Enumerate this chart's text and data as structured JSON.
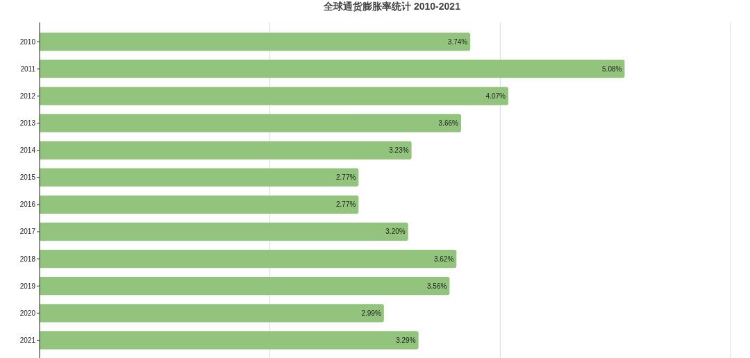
{
  "chart_data": {
    "type": "bar",
    "orientation": "horizontal",
    "title": "全球通货膨胀率统计 2010-2021",
    "categories": [
      "2010",
      "2011",
      "2012",
      "2013",
      "2014",
      "2015",
      "2016",
      "2017",
      "2018",
      "2019",
      "2020",
      "2021"
    ],
    "values": [
      3.74,
      5.08,
      4.07,
      3.66,
      3.23,
      2.77,
      2.77,
      3.2,
      3.62,
      3.56,
      2.99,
      3.29
    ],
    "value_labels": [
      "3.74%",
      "5.08%",
      "4.07%",
      "3.66%",
      "3.23%",
      "2.77%",
      "2.77%",
      "3.20%",
      "3.62%",
      "3.56%",
      "2.99%",
      "3.29%"
    ],
    "color": "#93c47d",
    "xlim": [
      0,
      6
    ],
    "xticks": [
      {
        "value": 0,
        "label": null
      },
      {
        "value": 2,
        "label": null
      },
      {
        "value": 4,
        "label": null
      },
      {
        "value": 6,
        "label": null
      }
    ],
    "grid": "x",
    "tick_labels": "y"
  }
}
